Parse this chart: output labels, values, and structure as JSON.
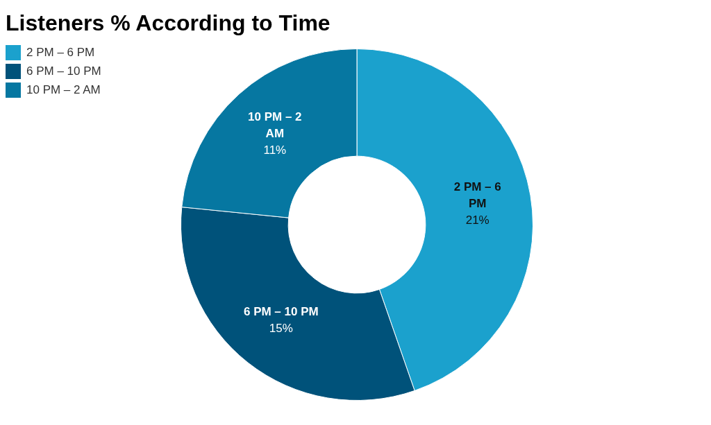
{
  "chart_data": {
    "type": "donut",
    "title": "Listeners % According to Time",
    "categories": [
      "2 PM – 6 PM",
      "6 PM – 10 PM",
      "10 PM – 2 AM"
    ],
    "values": [
      21,
      15,
      11
    ],
    "colors": [
      "#1ba1cd",
      "#00527a",
      "#0677a1"
    ],
    "value_labels": [
      "21%",
      "15%",
      "11%"
    ],
    "legend": "top left"
  }
}
